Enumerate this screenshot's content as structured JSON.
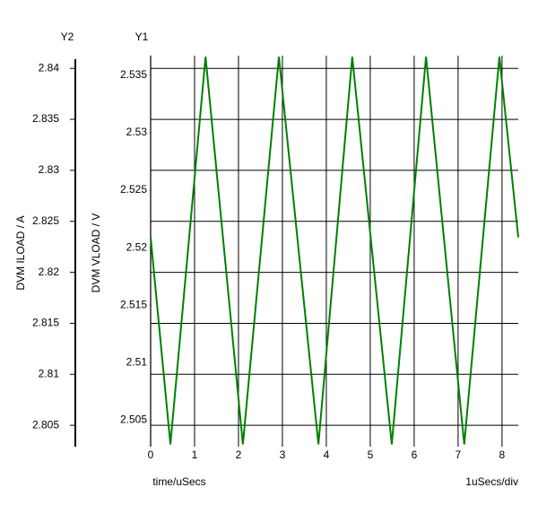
{
  "chart_data": {
    "type": "line",
    "y2_heading": "Y2",
    "y1_heading": "Y1",
    "y2label": "DVM ILOAD / A",
    "ylabel": "DVM VLOAD / V",
    "xlabel": "time/uSecs",
    "x_scale_note": "1uSecs/div",
    "x": [
      0,
      0.45,
      1.25,
      2.1,
      2.92,
      3.82,
      4.59,
      5.49,
      6.27,
      7.14,
      7.94,
      8.37
    ],
    "values": [
      2.5209,
      2.5029,
      2.5366,
      2.5029,
      2.5366,
      2.5029,
      2.5366,
      2.5029,
      2.5366,
      2.5029,
      2.5366,
      2.5209
    ],
    "color": "#008000",
    "xlim": [
      0,
      8.37
    ],
    "xticks": [
      0,
      1,
      2,
      3,
      4,
      5,
      6,
      7,
      8
    ],
    "ylim": [
      2.5027,
      2.5367
    ],
    "yticks": [
      2.505,
      2.51,
      2.515,
      2.52,
      2.525,
      2.53,
      2.535
    ],
    "y2lim": [
      2.8029,
      2.8409
    ],
    "y2ticks": [
      2.805,
      2.81,
      2.815,
      2.82,
      2.825,
      2.83,
      2.835,
      2.84
    ],
    "grid": true
  }
}
